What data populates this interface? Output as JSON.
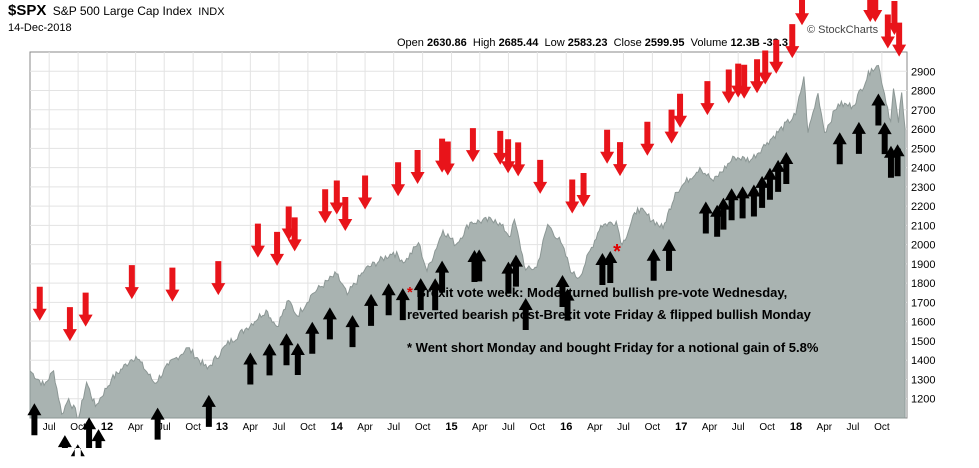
{
  "header": {
    "symbol": "$SPX",
    "name": "S&P 500 Large Cap Index",
    "exchange": "INDX",
    "date": "14-Dec-2018",
    "open_label": "Open",
    "open": "2630.86",
    "high_label": "High",
    "high": "2685.44",
    "low_label": "Low",
    "low": "2583.23",
    "close_label": "Close",
    "close": "2599.95",
    "volume_label": "Volume",
    "volume": "12.3B",
    "change": "-33.3",
    "brand": "© StockCharts"
  },
  "annotations": {
    "line1_star": "*",
    "line1": "Brexit vote week: Model turned bullish pre-vote Wednesday,",
    "line2": "reverted bearish post-Brexit vote Friday & flipped bullish Monday",
    "line3": "* Went short Monday and bought Friday for a notional gain of 5.8%",
    "red_star": "*",
    "black_star": "*"
  },
  "chart_data": {
    "type": "area",
    "title": "$SPX S&P 500 Large Cap Index INDX",
    "ylim": [
      1100,
      3000
    ],
    "y_ticks": [
      1200,
      1300,
      1400,
      1500,
      1600,
      1700,
      1800,
      1900,
      2000,
      2100,
      2200,
      2300,
      2400,
      2500,
      2600,
      2700,
      2800,
      2900
    ],
    "x_ticks": [
      {
        "label": "Jul",
        "date": "2011-07-01"
      },
      {
        "label": "Oct",
        "date": "2011-10-01"
      },
      {
        "label": "12",
        "date": "2012-01-01"
      },
      {
        "label": "Apr",
        "date": "2012-04-01"
      },
      {
        "label": "Jul",
        "date": "2012-07-01"
      },
      {
        "label": "Oct",
        "date": "2012-10-01"
      },
      {
        "label": "13",
        "date": "2013-01-01"
      },
      {
        "label": "Apr",
        "date": "2013-04-01"
      },
      {
        "label": "Jul",
        "date": "2013-07-01"
      },
      {
        "label": "Oct",
        "date": "2013-10-01"
      },
      {
        "label": "14",
        "date": "2014-01-01"
      },
      {
        "label": "Apr",
        "date": "2014-04-01"
      },
      {
        "label": "Jul",
        "date": "2014-07-01"
      },
      {
        "label": "Oct",
        "date": "2014-10-01"
      },
      {
        "label": "15",
        "date": "2015-01-01"
      },
      {
        "label": "Apr",
        "date": "2015-04-01"
      },
      {
        "label": "Jul",
        "date": "2015-07-01"
      },
      {
        "label": "Oct",
        "date": "2015-10-01"
      },
      {
        "label": "16",
        "date": "2016-01-01"
      },
      {
        "label": "Apr",
        "date": "2016-04-01"
      },
      {
        "label": "Jul",
        "date": "2016-07-01"
      },
      {
        "label": "Oct",
        "date": "2016-10-01"
      },
      {
        "label": "17",
        "date": "2017-01-01"
      },
      {
        "label": "Apr",
        "date": "2017-04-01"
      },
      {
        "label": "Jul",
        "date": "2017-07-01"
      },
      {
        "label": "Oct",
        "date": "2017-10-01"
      },
      {
        "label": "18",
        "date": "2018-01-01"
      },
      {
        "label": "Apr",
        "date": "2018-04-01"
      },
      {
        "label": "Jul",
        "date": "2018-07-01"
      },
      {
        "label": "Oct",
        "date": "2018-10-01"
      }
    ],
    "x_range": [
      "2011-05-01",
      "2018-12-20"
    ],
    "series": [
      {
        "dates": [
          "2011-05-01",
          "2011-06-15",
          "2011-07-15",
          "2011-08-10",
          "2011-09-01",
          "2011-10-03",
          "2011-10-28",
          "2011-11-25",
          "2012-01-15",
          "2012-03-15",
          "2012-04-02",
          "2012-06-01",
          "2012-07-15",
          "2012-09-14",
          "2012-11-15",
          "2013-01-15",
          "2013-03-15",
          "2013-05-21",
          "2013-06-24",
          "2013-08-01",
          "2013-08-28",
          "2013-10-15",
          "2013-12-31",
          "2014-02-03",
          "2014-03-31",
          "2014-06-30",
          "2014-08-06",
          "2014-09-18",
          "2014-10-15",
          "2014-12-05",
          "2015-01-15",
          "2015-03-01",
          "2015-05-20",
          "2015-07-08",
          "2015-07-20",
          "2015-08-25",
          "2015-09-29",
          "2015-11-03",
          "2015-12-15",
          "2016-01-20",
          "2016-02-11",
          "2016-04-20",
          "2016-06-08",
          "2016-06-27",
          "2016-08-15",
          "2016-11-04",
          "2016-12-13",
          "2017-03-01",
          "2017-04-13",
          "2017-06-19",
          "2017-08-10",
          "2017-10-01",
          "2017-12-31",
          "2018-01-26",
          "2018-02-08",
          "2018-03-12",
          "2018-04-02",
          "2018-05-15",
          "2018-07-01",
          "2018-08-29",
          "2018-09-20",
          "2018-10-29",
          "2018-11-07",
          "2018-11-23",
          "2018-12-03",
          "2018-12-14"
        ],
        "values": [
          1345,
          1270,
          1345,
          1120,
          1200,
          1100,
          1285,
          1160,
          1300,
          1400,
          1420,
          1280,
          1375,
          1465,
          1355,
          1480,
          1560,
          1660,
          1575,
          1710,
          1630,
          1745,
          1848,
          1740,
          1870,
          1960,
          1910,
          2010,
          1862,
          2075,
          2000,
          2115,
          2130,
          2045,
          2130,
          1868,
          1882,
          2105,
          2010,
          1850,
          1829,
          2100,
          2120,
          2000,
          2190,
          2085,
          2270,
          2400,
          2330,
          2455,
          2440,
          2530,
          2674,
          2873,
          2581,
          2786,
          2582,
          2730,
          2720,
          2914,
          2930,
          2640,
          2810,
          2633,
          2790,
          2600
        ]
      }
    ],
    "red_down_arrows": [
      "2011-06-01",
      "2011-09-05",
      "2011-10-25",
      "2012-03-20",
      "2012-07-27",
      "2012-12-20",
      "2013-04-25",
      "2013-06-25",
      "2013-08-01",
      "2013-08-20",
      "2013-11-25",
      "2014-01-01",
      "2014-01-28",
      "2014-04-01",
      "2014-07-15",
      "2014-09-15",
      "2014-12-02",
      "2014-12-20",
      "2015-03-10",
      "2015-06-05",
      "2015-06-30",
      "2015-08-01",
      "2015-10-10",
      "2016-01-20",
      "2016-02-25",
      "2016-05-10",
      "2016-06-20",
      "2016-09-15",
      "2016-12-01",
      "2016-12-28",
      "2017-03-25",
      "2017-06-01",
      "2017-07-01",
      "2017-07-20",
      "2017-08-30",
      "2017-09-25",
      "2017-10-30",
      "2017-12-20",
      "2018-01-20",
      "2018-08-25",
      "2018-09-10",
      "2018-10-20",
      "2018-11-10",
      "2018-11-25"
    ],
    "black_up_arrows": [
      "2011-05-15",
      "2011-08-20",
      "2011-09-30",
      "2011-11-05",
      "2011-12-05",
      "2012-06-10",
      "2012-11-20",
      "2013-04-01",
      "2013-06-01",
      "2013-07-25",
      "2013-08-30",
      "2013-10-15",
      "2013-12-10",
      "2014-02-20",
      "2014-04-20",
      "2014-06-15",
      "2014-07-30",
      "2014-09-25",
      "2014-11-10",
      "2014-12-02",
      "2015-03-15",
      "2015-03-30",
      "2015-07-01",
      "2015-07-25",
      "2015-08-25",
      "2015-12-20",
      "2016-01-05",
      "2016-04-25",
      "2016-05-20",
      "2016-10-05",
      "2016-11-23",
      "2017-03-20",
      "2017-04-25",
      "2017-05-15",
      "2017-06-10",
      "2017-07-15",
      "2017-08-20",
      "2017-09-15",
      "2017-10-10",
      "2017-11-05",
      "2017-12-01",
      "2018-05-20",
      "2018-07-20",
      "2018-09-20",
      "2018-10-10",
      "2018-10-30",
      "2018-11-20"
    ]
  }
}
